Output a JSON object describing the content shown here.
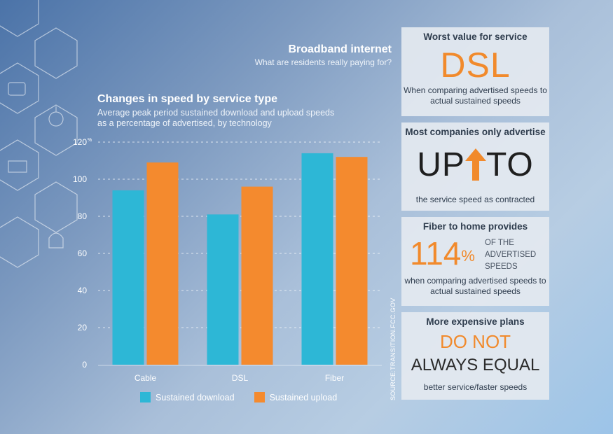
{
  "header": {
    "title": "Broadband internet",
    "subtitle": "What are residents really paying for?"
  },
  "colors": {
    "download": "#2db7d6",
    "upload": "#f48a2e",
    "accent_orange": "#f18a2c"
  },
  "chart_data": {
    "type": "bar",
    "title": "Changes in speed by service type",
    "subtitle": "Average peak period sustained download and upload speeds as a percentage of advertised, by technology",
    "categories": [
      "Cable",
      "DSL",
      "Fiber"
    ],
    "series": [
      {
        "name": "Sustained download",
        "values": [
          94,
          81,
          114
        ]
      },
      {
        "name": "Sustained upload",
        "values": [
          109,
          96,
          112
        ]
      }
    ],
    "ylim": [
      0,
      120
    ],
    "yticks": [
      "0",
      "20",
      "40",
      "60",
      "80",
      "100",
      "120"
    ],
    "y_unit": "%",
    "grid": true,
    "legend": "bottom"
  },
  "source": "SOURCE:TRANSITION.FCC.GOV",
  "panels": {
    "worst": {
      "heading": "Worst value for service",
      "big": "DSL",
      "text": "When comparing advertised speeds to actual sustained speeds"
    },
    "upto": {
      "heading": "Most companies only advertise",
      "left": "UP",
      "right": "TO",
      "text": "the service speed as contracted",
      "icon": "up-arrow-icon"
    },
    "fiber": {
      "heading": "Fiber to home provides",
      "value": "114",
      "unit": "%",
      "side": "OF THE ADVERTISED SPEEDS",
      "text": "when comparing advertised speeds to actual sustained speeds"
    },
    "plans": {
      "heading": "More expensive plans",
      "line1": "DO NOT",
      "line2": "ALWAYS EQUAL",
      "text": "better service/faster speeds"
    }
  }
}
